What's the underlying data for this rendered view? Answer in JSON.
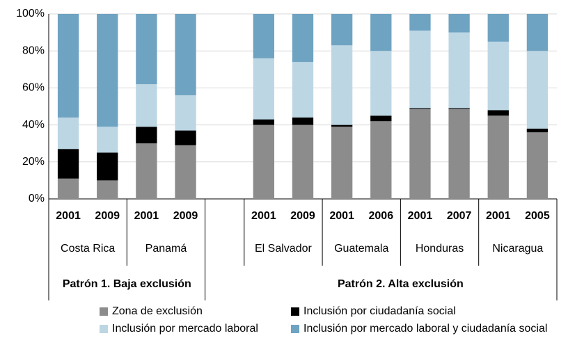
{
  "chart_data": {
    "type": "stacked_bar",
    "categories": [
      "2001",
      "2009",
      "2001",
      "2009",
      null,
      "2001",
      "2009",
      "2001",
      "2006",
      "2001",
      "2007",
      "2001",
      "2005"
    ],
    "groups": [
      {
        "name": "Patrón 1. Baja exclusión",
        "subgroups": [
          {
            "name": "Costa Rica"
          },
          {
            "name": "Panamá"
          }
        ]
      },
      {
        "name": "Patrón 2. Alta exclusión",
        "subgroups": [
          {
            "name": "El Salvador"
          },
          {
            "name": "Guatemala"
          },
          {
            "name": "Honduras"
          },
          {
            "name": "Nicaragua"
          }
        ]
      }
    ],
    "series": [
      {
        "name": "Zona de exclusión",
        "color": "#8c8c8c",
        "values": [
          11,
          10,
          30,
          29,
          null,
          40,
          40,
          39,
          42,
          48.5,
          48.5,
          45,
          36
        ]
      },
      {
        "name": "Inclusión por ciudadanía social",
        "color": "#000000",
        "values": [
          16,
          15,
          9,
          8,
          null,
          3,
          4,
          1,
          3,
          0.5,
          0.5,
          3,
          2
        ]
      },
      {
        "name": "Inclusión por mercado laboral",
        "color": "#bcd6e4",
        "values": [
          17,
          14,
          23,
          19,
          null,
          33,
          30,
          43,
          35,
          42,
          41,
          37,
          42
        ]
      },
      {
        "name": "Inclusión por mercado laboral y ciudadanía social",
        "color": "#6fa3c2",
        "values": [
          56,
          61,
          38,
          44,
          null,
          24,
          26,
          17,
          20,
          9,
          10,
          15,
          20
        ]
      }
    ],
    "ylim": [
      0,
      100
    ],
    "yticks": [
      {
        "value": 0,
        "label": "0%"
      },
      {
        "value": 20,
        "label": "20%"
      },
      {
        "value": 40,
        "label": "40%"
      },
      {
        "value": 60,
        "label": "60%"
      },
      {
        "value": 80,
        "label": "80%"
      },
      {
        "value": 100,
        "label": "100%"
      }
    ],
    "grid": true
  }
}
